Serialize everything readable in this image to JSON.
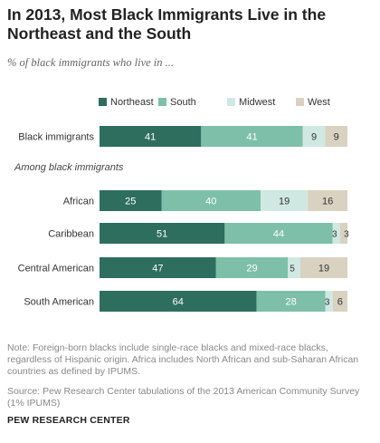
{
  "title": "In 2013, Most Black Immigrants Live in the Northeast and the South",
  "subtitle": "% of black immigrants who live in ...",
  "chart_data": {
    "type": "bar",
    "orientation": "horizontal",
    "stacked": true,
    "legend_position": "top",
    "categories": [
      "Black immigrants",
      "African",
      "Caribbean",
      "Central American",
      "South American"
    ],
    "section_label": "Among black immigrants",
    "series": [
      {
        "name": "Northeast",
        "color": "#2e6e5e",
        "values": [
          41,
          25,
          51,
          47,
          64
        ]
      },
      {
        "name": "South",
        "color": "#7dbfa9",
        "values": [
          41,
          40,
          44,
          29,
          28
        ]
      },
      {
        "name": "Midwest",
        "color": "#cfe8e2",
        "values": [
          9,
          19,
          3,
          5,
          3
        ]
      },
      {
        "name": "West",
        "color": "#d9d2c1",
        "values": [
          9,
          16,
          3,
          19,
          6
        ]
      }
    ],
    "label_colors": {
      "Northeast": "#ffffff",
      "South": "#ffffff",
      "Midwest": "#333333",
      "West": "#333333"
    }
  },
  "note": "Note: Foreign-born blacks include single-race blacks and mixed-race blacks, regardless of Hispanic origin. Africa includes North African and sub-Saharan African countries as defined by IPUMS.",
  "source": "Source: Pew Research Center tabulations of the 2013 American Community Survey (1% IPUMS)",
  "brand": "PEW RESEARCH CENTER"
}
